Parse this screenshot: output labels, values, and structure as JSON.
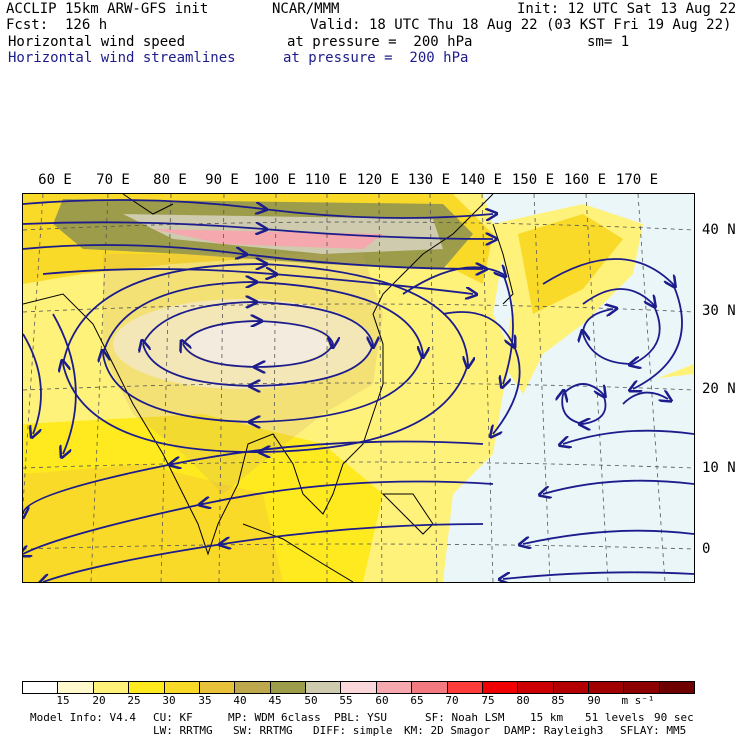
{
  "header": {
    "line1_left": "ACCLIP 15km ARW-GFS init",
    "line1_center": "NCAR/MMM",
    "line1_right": "Init: 12 UTC Sat 13 Aug 22",
    "line2_left": "Fcst:  126 h",
    "line2_right": "Valid: 18 UTC Thu 18 Aug 22 (03 KST Fri 19 Aug 22)",
    "field1_name": "Horizontal wind speed",
    "field1_level": "at pressure =  200 hPa",
    "field1_smooth": "sm= 1",
    "field2_name": "Horizontal wind streamlines",
    "field2_level": "at pressure =  200 hPa"
  },
  "map": {
    "lon_labels": [
      "60 E",
      "70 E",
      "80 E",
      "90 E",
      "100 E",
      "110 E",
      "120 E",
      "130 E",
      "140 E",
      "150 E",
      "160 E",
      "170 E"
    ],
    "lat_labels": [
      "40 N",
      "30 N",
      "20 N",
      "10 N",
      "0"
    ],
    "streamline_color": "#1c1c8c",
    "coast_color": "#000000"
  },
  "colorbar": {
    "levels": [
      "15",
      "20",
      "25",
      "30",
      "35",
      "40",
      "45",
      "50",
      "55",
      "60",
      "65",
      "70",
      "75",
      "80",
      "85",
      "90"
    ],
    "units": "m s⁻¹",
    "colors": [
      "#ffffff",
      "#fffacd",
      "#fff27a",
      "#ffea20",
      "#fada28",
      "#e8c23a",
      "#bea84e",
      "#9c9c4a",
      "#cfcbae",
      "#fad7db",
      "#f5a8ad",
      "#f27a80",
      "#ff3c3c",
      "#f00000",
      "#cc0000",
      "#b40000",
      "#a00000",
      "#8c0000",
      "#6e0000"
    ]
  },
  "footer": {
    "row1": [
      "Model Info: V4.4",
      "CU: KF",
      "MP: WDM 6class",
      "PBL: YSU",
      "SF: Noah LSM",
      "15 km",
      "51 levels",
      "90 sec"
    ],
    "row2": [
      "LW: RRTMG",
      "SW: RRTMG",
      "DIFF: simple",
      "KM: 2D Smagor",
      "DAMP: Rayleigh3",
      "SFLAY: MM5"
    ]
  }
}
